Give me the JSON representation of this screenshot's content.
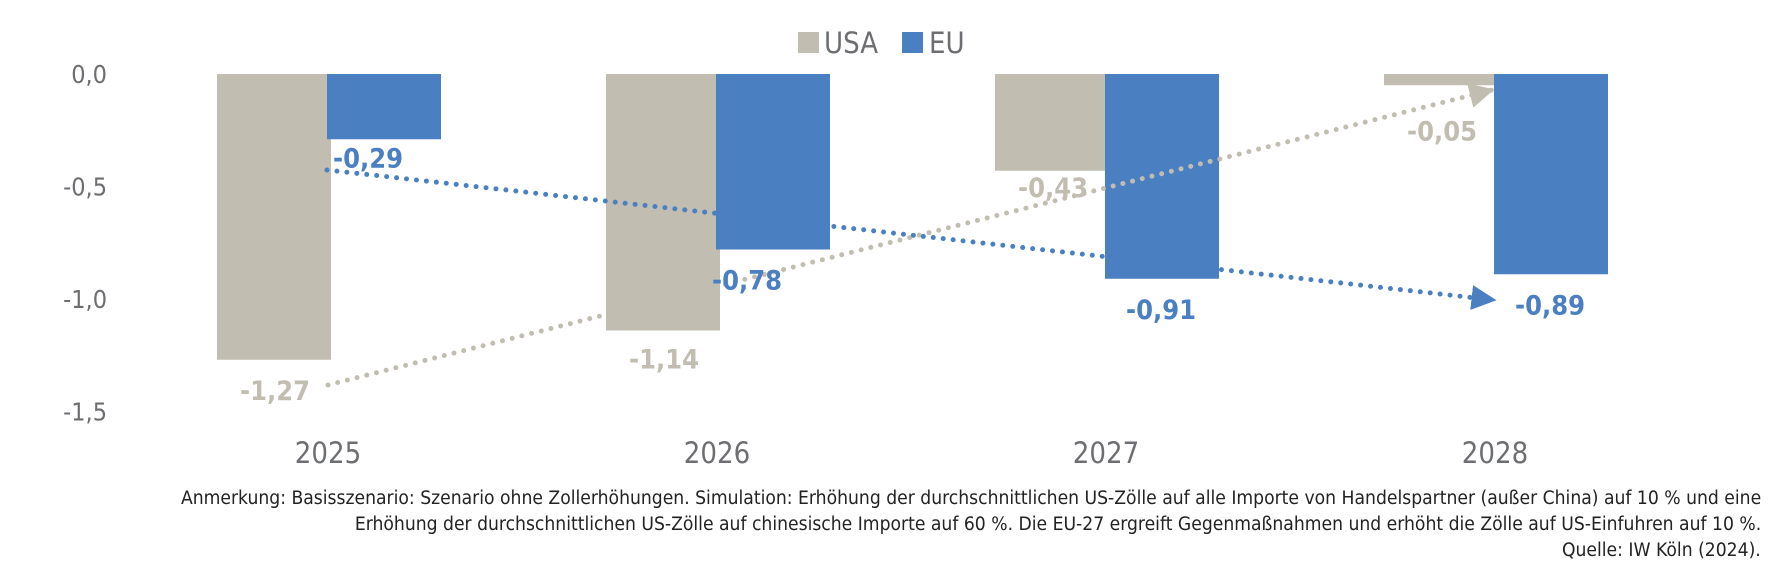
{
  "chart_data": {
    "type": "bar",
    "title": "",
    "xlabel": "",
    "ylabel": "",
    "categories": [
      "2025",
      "2026",
      "2027",
      "2028"
    ],
    "series": [
      {
        "name": "USA",
        "color": "#c2bdb1",
        "values": [
          -1.27,
          -1.14,
          -0.43,
          -0.05
        ],
        "labels": [
          "-1,27",
          "-1,14",
          "-0,43",
          "-0,05"
        ],
        "trend_arrow": "rising from 2025 to 2028"
      },
      {
        "name": "EU",
        "color": "#4a7fc1",
        "values": [
          -0.29,
          -0.78,
          -0.91,
          -0.89
        ],
        "labels": [
          "-0,29",
          "-0,78",
          "-0,91",
          "-0,89"
        ],
        "trend_arrow": "falling from 2025 to 2028"
      }
    ],
    "ylim": [
      -1.5,
      0.0
    ],
    "yticks": [
      0.0,
      -0.5,
      -1.0,
      -1.5
    ],
    "ytick_labels": [
      "0,0",
      "-0,5",
      "-1,0",
      "-1,5"
    ],
    "grid": false,
    "legend_position": "top-center",
    "annotations": [
      "dotted trend arrow USA",
      "dotted trend arrow EU"
    ]
  },
  "footnote": {
    "line1": "Anmerkung: Basisszenario: Szenario ohne Zollerhöhungen. Simulation: Erhöhung der durchschnittlichen US-Zölle auf alle Importe von Handelspartner (außer China) auf 10 % und eine",
    "line2": "Erhöhung der durchschnittlichen US-Zölle auf chinesische Importe auf 60 %. Die EU-27 ergreift Gegenmaßnahmen und erhöht die Zölle auf US-Einfuhren auf 10 %.",
    "source": "Quelle: IW Köln (2024)."
  }
}
